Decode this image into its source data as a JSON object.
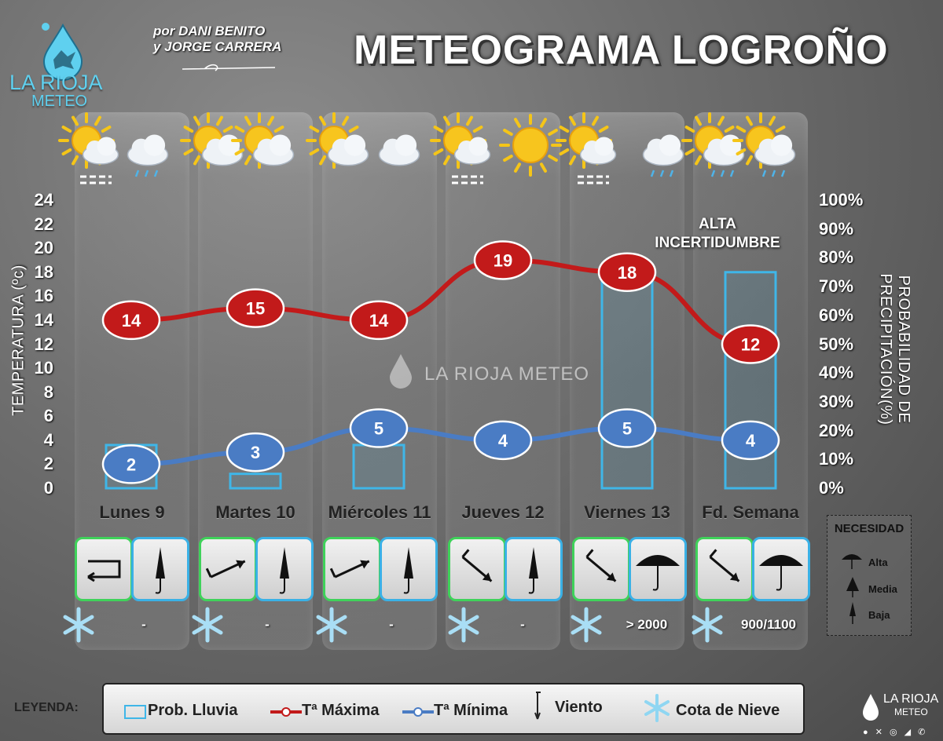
{
  "header": {
    "brand_name": "LA RIOJA",
    "brand_sub": "METEO",
    "authors_line1": "por DANI BENITO",
    "authors_line2": "y JORGE CARRERA",
    "title": "METEOGRAMA LOGROÑO"
  },
  "axes": {
    "left_title": "TEMPERATURA (ºc)",
    "right_title": "PROBABILIDAD DE PRECIPITACIÓN(%)",
    "left_ticks": [
      "24",
      "22",
      "20",
      "18",
      "16",
      "14",
      "12",
      "10",
      "8",
      "6",
      "4",
      "2",
      "0"
    ],
    "right_ticks": [
      "100%",
      "90%",
      "80%",
      "70%",
      "60%",
      "50%",
      "40%",
      "30%",
      "20%",
      "10%",
      "0%"
    ]
  },
  "annotation": {
    "line1": "ALTA",
    "line2": "INCERTIDUMBRE"
  },
  "watermark": "LA RIOJA METEO",
  "days": [
    {
      "label": "Lunes 9",
      "snow": "-",
      "umbrella": "Baja",
      "wind_dir": "variable",
      "icons": [
        "partly-sunny-fog-icon",
        "cloudy-drizzle-icon"
      ]
    },
    {
      "label": "Martes 10",
      "snow": "-",
      "umbrella": "Baja",
      "wind_dir": "NW",
      "icons": [
        "partly-cloudy-icon",
        "sunny-cloud-icon"
      ]
    },
    {
      "label": "Miércoles 11",
      "snow": "-",
      "umbrella": "Baja",
      "wind_dir": "NW",
      "icons": [
        "partly-cloudy-icon",
        "cloudy-icon"
      ]
    },
    {
      "label": "Jueves 12",
      "snow": "-",
      "umbrella": "Baja",
      "wind_dir": "NW",
      "icons": [
        "sunny-fog-icon",
        "sunny-icon"
      ]
    },
    {
      "label": "Viernes 13",
      "snow": "> 2000",
      "umbrella": "Alta",
      "wind_dir": "NW",
      "icons": [
        "sunny-fog-icon",
        "rain-cloud-icon"
      ]
    },
    {
      "label": "Fd. Semana",
      "snow": "900/1100",
      "umbrella": "Alta",
      "wind_dir": "NW",
      "icons": [
        "partly-cloudy-rain-icon",
        "partly-cloudy-rain-icon"
      ]
    }
  ],
  "necesidad": {
    "title": "NECESIDAD",
    "levels": [
      "Alta",
      "Media",
      "Baja"
    ]
  },
  "legend": {
    "label": "LEYENDA:",
    "items": [
      "Prob. Lluvia",
      "Tª Máxima",
      "Tª Mínima",
      "Viento",
      "Cota de Nieve"
    ]
  },
  "footer": {
    "brand": "LA RIOJA",
    "brand_sub": "METEO"
  },
  "colors": {
    "max_line": "#c21a1a",
    "min_line": "#4a7cc4",
    "rain_bar": "#3fb6e8",
    "wind_border": "#3fd25a",
    "rain_border": "#3ab1e6"
  },
  "chart_data": {
    "type": "line",
    "categories": [
      "Lunes 9",
      "Martes 10",
      "Miércoles 11",
      "Jueves 12",
      "Viernes 13",
      "Fd. Semana"
    ],
    "series": [
      {
        "name": "Tª Máxima",
        "values": [
          14,
          15,
          14,
          19,
          18,
          12
        ]
      },
      {
        "name": "Tª Mínima",
        "values": [
          2,
          3,
          5,
          4,
          5,
          4
        ]
      },
      {
        "name": "Prob. Lluvia",
        "values": [
          15,
          5,
          15,
          0,
          75,
          75
        ],
        "units": "%",
        "type": "bar",
        "axis": "right"
      }
    ],
    "title": "METEOGRAMA LOGROÑO",
    "ylabel": "TEMPERATURA (ºc)",
    "y2label": "PROBABILIDAD DE PRECIPITACIÓN(%)",
    "ylim": [
      0,
      24
    ],
    "y2lim": [
      0,
      100
    ],
    "grid": false,
    "legend": "bottom"
  }
}
